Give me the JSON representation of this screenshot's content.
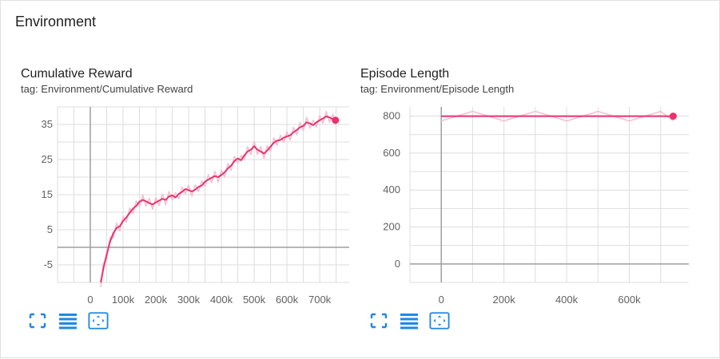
{
  "section": {
    "title": "Environment"
  },
  "colors": {
    "series": "#e8336d",
    "smooth_bg": "#f5bfd2",
    "grid": "#dddddd",
    "axis": "#9e9e9e",
    "tool_blue": "#1e88e5"
  },
  "icons": {
    "fit": "fullscreen-icon",
    "log": "log-scale-icon",
    "zoom": "fit-domain-icon"
  },
  "charts": [
    {
      "title": "Cumulative Reward",
      "tag": "tag: Environment/Cumulative Reward",
      "chart_data": {
        "type": "line",
        "x_ticks": [
          "0",
          "100k",
          "200k",
          "300k",
          "400k",
          "500k",
          "600k",
          "700k"
        ],
        "y_ticks": [
          "35",
          "25",
          "15",
          "5",
          "-5"
        ],
        "xlim": [
          -100000,
          790000
        ],
        "ylim": [
          -10,
          40
        ],
        "grid": true,
        "series": [
          {
            "x": [
              32000,
              40000,
              50000,
              60000,
              70000,
              80000,
              90000,
              100000,
              110000,
              120000,
              130000,
              140000,
              150000,
              160000,
              170000,
              180000,
              190000,
              200000,
              210000,
              220000,
              230000,
              240000,
              250000,
              260000,
              270000,
              280000,
              290000,
              300000,
              310000,
              320000,
              330000,
              340000,
              350000,
              360000,
              370000,
              380000,
              390000,
              400000,
              410000,
              420000,
              430000,
              440000,
              450000,
              460000,
              470000,
              480000,
              490000,
              500000,
              510000,
              520000,
              530000,
              540000,
              550000,
              560000,
              570000,
              580000,
              590000,
              600000,
              610000,
              620000,
              630000,
              640000,
              650000,
              660000,
              670000,
              680000,
              690000,
              700000,
              710000,
              720000,
              730000,
              740000,
              748000
            ],
            "values": [
              -10,
              -6,
              -2,
              1.5,
              4,
              5.5,
              6,
              7.5,
              8.5,
              9.8,
              11,
              11.8,
              13,
              13.5,
              13.1,
              12.6,
              12.2,
              12.8,
              13.3,
              13.8,
              13.5,
              14.5,
              14.8,
              14.2,
              15.2,
              15.8,
              16.6,
              16.3,
              15.9,
              16.4,
              17.2,
              17.6,
              18.7,
              19.3,
              19.8,
              20.3,
              20.0,
              20.6,
              21.4,
              22.5,
              23.3,
              24.6,
              25.3,
              24.8,
              26.2,
              27.3,
              27.8,
              28.8,
              27.8,
              27.3,
              26.7,
              27.6,
              28.7,
              29.8,
              30.4,
              30.6,
              31.2,
              31.6,
              31.9,
              32.8,
              33.4,
              34.2,
              34.6,
              35.6,
              35.3,
              34.8,
              35.6,
              36.2,
              36.7,
              37.3,
              37.0,
              36.5,
              36.2
            ]
          }
        ]
      }
    },
    {
      "title": "Episode Length",
      "tag": "tag: Environment/Episode Length",
      "chart_data": {
        "type": "line",
        "x_ticks": [
          "0",
          "200k",
          "400k",
          "600k"
        ],
        "y_ticks": [
          "800",
          "600",
          "400",
          "200",
          "0"
        ],
        "xlim": [
          -100000,
          790000
        ],
        "ylim": [
          -100,
          850
        ],
        "grid": true,
        "series": [
          {
            "x": [
              0,
              100000,
              200000,
              300000,
              400000,
              500000,
              600000,
              700000,
              740000
            ],
            "values": [
              800,
              800,
              800,
              800,
              800,
              800,
              800,
              800,
              800
            ]
          }
        ]
      }
    }
  ]
}
